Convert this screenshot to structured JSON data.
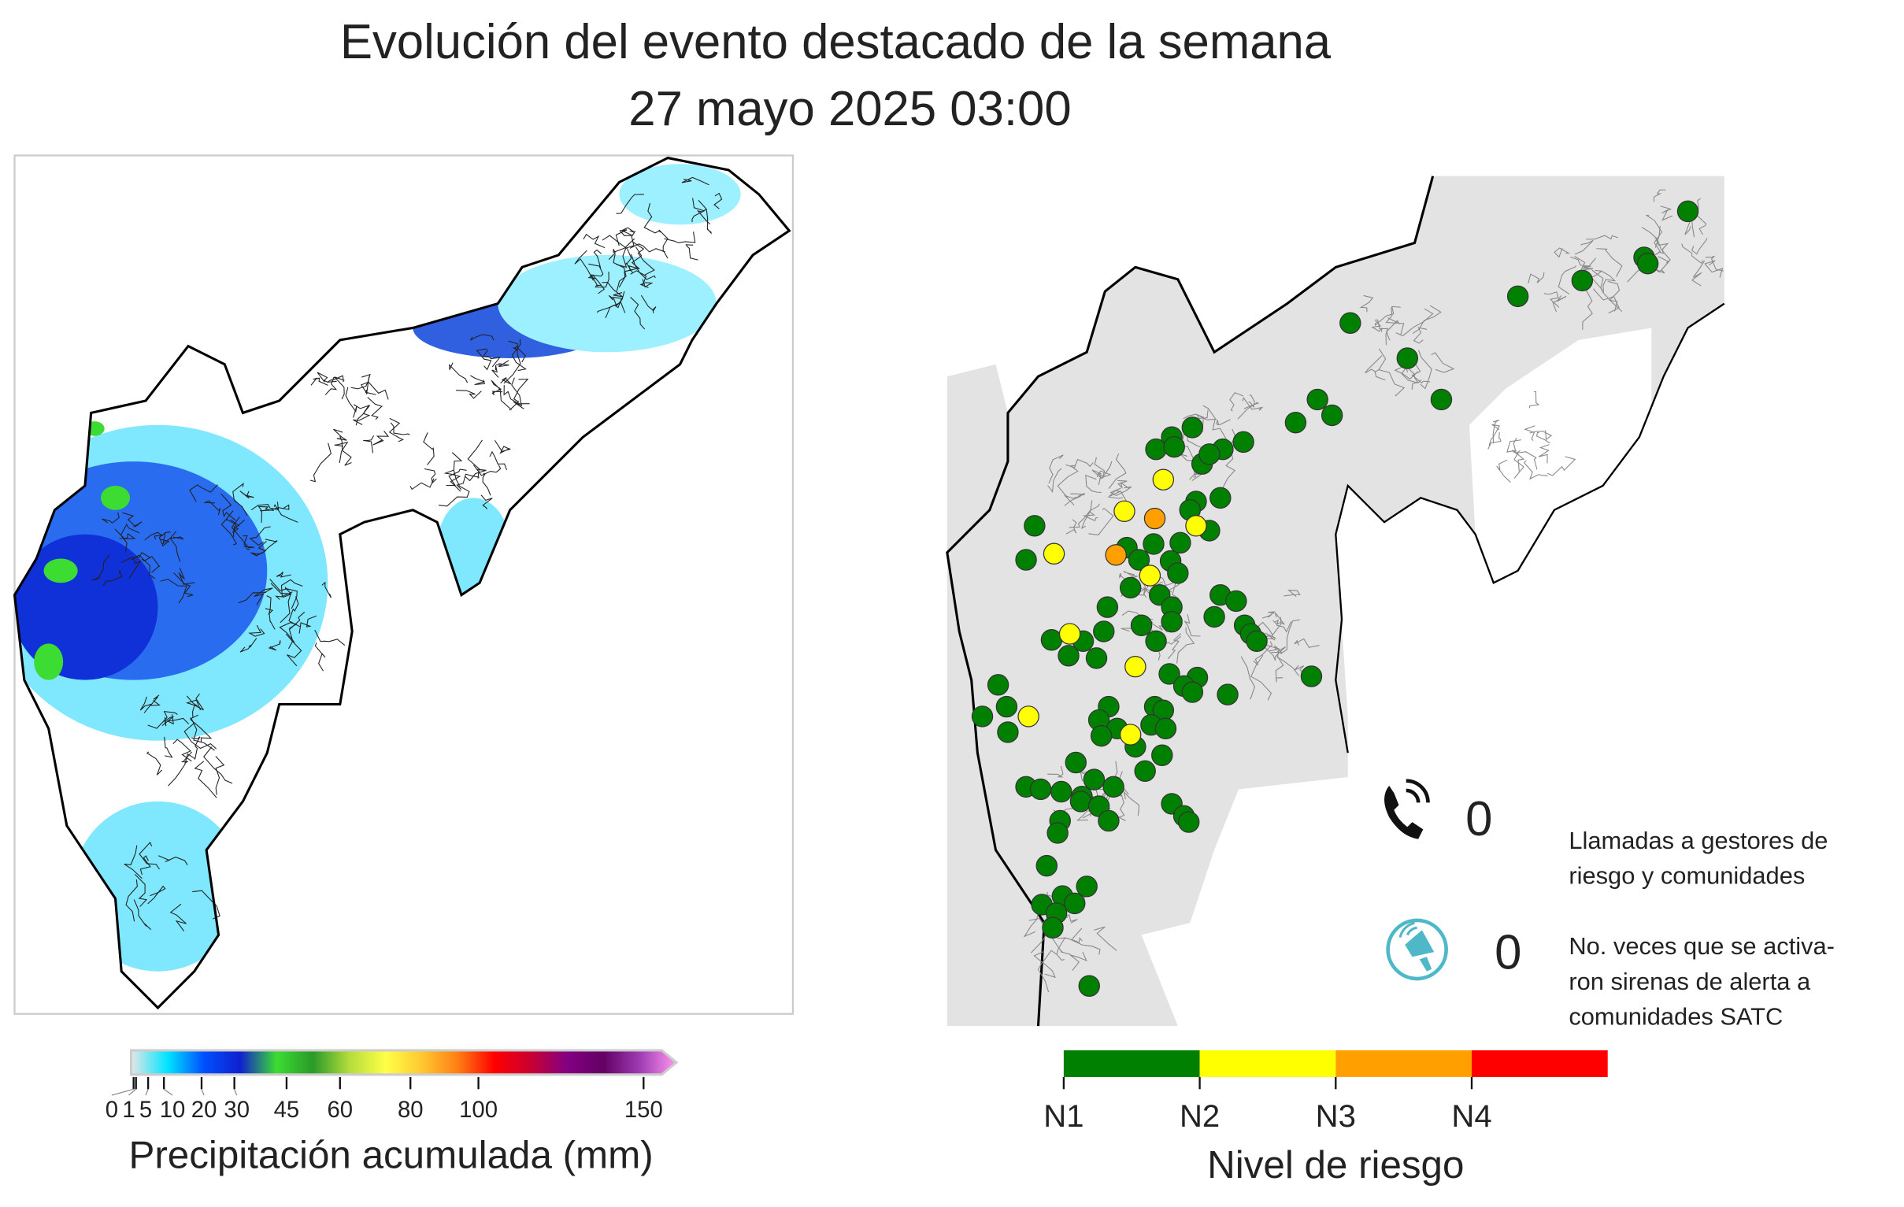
{
  "title": {
    "line1": "Evolución del evento destacado de la semana",
    "line2": "27 mayo 2025 03:00"
  },
  "precip_legend": {
    "label": "Precipitación acumulada (mm)",
    "ticks": [
      "0",
      "1",
      "5",
      "10",
      "20",
      "30",
      "45",
      "60",
      "80",
      "100",
      "150"
    ],
    "colors": [
      "#e6e6e6",
      "#00e5ff",
      "#0050ff",
      "#1020d0",
      "#3cdc32",
      "#2a9a28",
      "#b4dc3c",
      "#ffff46",
      "#ffc832",
      "#ff7d14",
      "#ff0000",
      "#c80032",
      "#820082",
      "#640064",
      "#a03cb4",
      "#ff96f0"
    ]
  },
  "risk_legend": {
    "label": "Nivel de riesgo",
    "levels": [
      {
        "name": "N1",
        "color": "#008000"
      },
      {
        "name": "N2",
        "color": "#ffff00"
      },
      {
        "name": "N3",
        "color": "#ffa000"
      },
      {
        "name": "N4",
        "color": "#ff0000"
      }
    ]
  },
  "stats": {
    "calls": {
      "icon": "phone-icon",
      "value": "0",
      "line1": "Llamadas a gestores de",
      "line2": "riesgo y comunidades"
    },
    "sirens": {
      "icon": "siren-icon",
      "value": "0",
      "line1": "No. veces que se activa-",
      "line2": "ron sirenas de alerta a",
      "line3": "comunidades SATC",
      "color": "#4fb8c8"
    }
  }
}
